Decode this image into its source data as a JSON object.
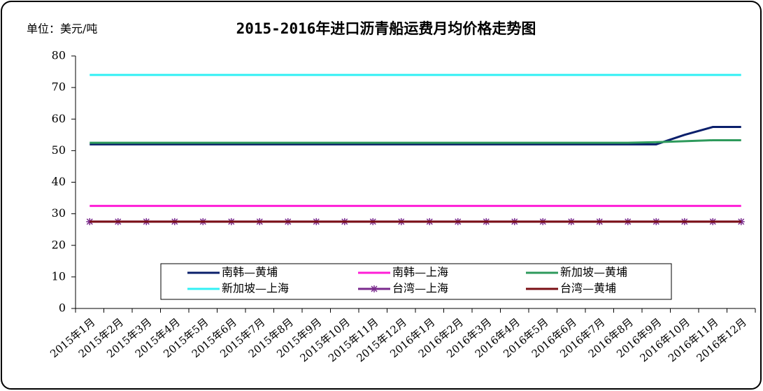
{
  "chart_data": {
    "type": "line",
    "title": "2015-2016年进口沥青船运费月均价格走势图",
    "unit_label": "单位：美元/吨",
    "categories": [
      "2015年1月",
      "2015年2月",
      "2015年3月",
      "2015年4月",
      "2015年5月",
      "2015年6月",
      "2015年7月",
      "2015年8月",
      "2015年9月",
      "2015年10月",
      "2015年11月",
      "2015年12月",
      "2016年1月",
      "2016年2月",
      "2016年3月",
      "2016年4月",
      "2016年5月",
      "2016年6月",
      "2016年7月",
      "2016年8月",
      "2016年9月",
      "2016年10月",
      "2016年11月",
      "2016年12月"
    ],
    "series": [
      {
        "name": "南韩—黄埔",
        "color": "#0a1f6b",
        "values": [
          52,
          52,
          52,
          52,
          52,
          52,
          52,
          52,
          52,
          52,
          52,
          52,
          52,
          52,
          52,
          52,
          52,
          52,
          52,
          52,
          52,
          55,
          57.5,
          57.5
        ]
      },
      {
        "name": "南韩—上海",
        "color": "#ff1ed7",
        "values": [
          32.5,
          32.5,
          32.5,
          32.5,
          32.5,
          32.5,
          32.5,
          32.5,
          32.5,
          32.5,
          32.5,
          32.5,
          32.5,
          32.5,
          32.5,
          32.5,
          32.5,
          32.5,
          32.5,
          32.5,
          32.5,
          32.5,
          32.5,
          32.5
        ]
      },
      {
        "name": "新加坡—黄埔",
        "color": "#2e9a5c",
        "values": [
          52.5,
          52.5,
          52.5,
          52.5,
          52.5,
          52.5,
          52.5,
          52.5,
          52.5,
          52.5,
          52.5,
          52.5,
          52.5,
          52.5,
          52.5,
          52.5,
          52.5,
          52.5,
          52.5,
          52.5,
          52.7,
          53,
          53.3,
          53.3
        ]
      },
      {
        "name": "新加坡—上海",
        "color": "#33f0f5",
        "values": [
          74,
          74,
          74,
          74,
          74,
          74,
          74,
          74,
          74,
          74,
          74,
          74,
          74,
          74,
          74,
          74,
          74,
          74,
          74,
          74,
          74,
          74,
          74,
          74
        ]
      },
      {
        "name": "台湾—上海",
        "color": "#7a2a8c",
        "marker": "asterisk",
        "values": [
          27.5,
          27.5,
          27.5,
          27.5,
          27.5,
          27.5,
          27.5,
          27.5,
          27.5,
          27.5,
          27.5,
          27.5,
          27.5,
          27.5,
          27.5,
          27.5,
          27.5,
          27.5,
          27.5,
          27.5,
          27.5,
          27.5,
          27.5,
          27.5
        ]
      },
      {
        "name": "台湾—黄埔",
        "color": "#7a0f14",
        "values": [
          27.5,
          27.5,
          27.5,
          27.5,
          27.5,
          27.5,
          27.5,
          27.5,
          27.5,
          27.5,
          27.5,
          27.5,
          27.5,
          27.5,
          27.5,
          27.5,
          27.5,
          27.5,
          27.5,
          27.5,
          27.5,
          27.5,
          27.5,
          27.5
        ]
      }
    ],
    "ylim": [
      0,
      80
    ],
    "yticks": [
      0,
      10,
      20,
      30,
      40,
      50,
      60,
      70,
      80
    ],
    "grid": false
  }
}
